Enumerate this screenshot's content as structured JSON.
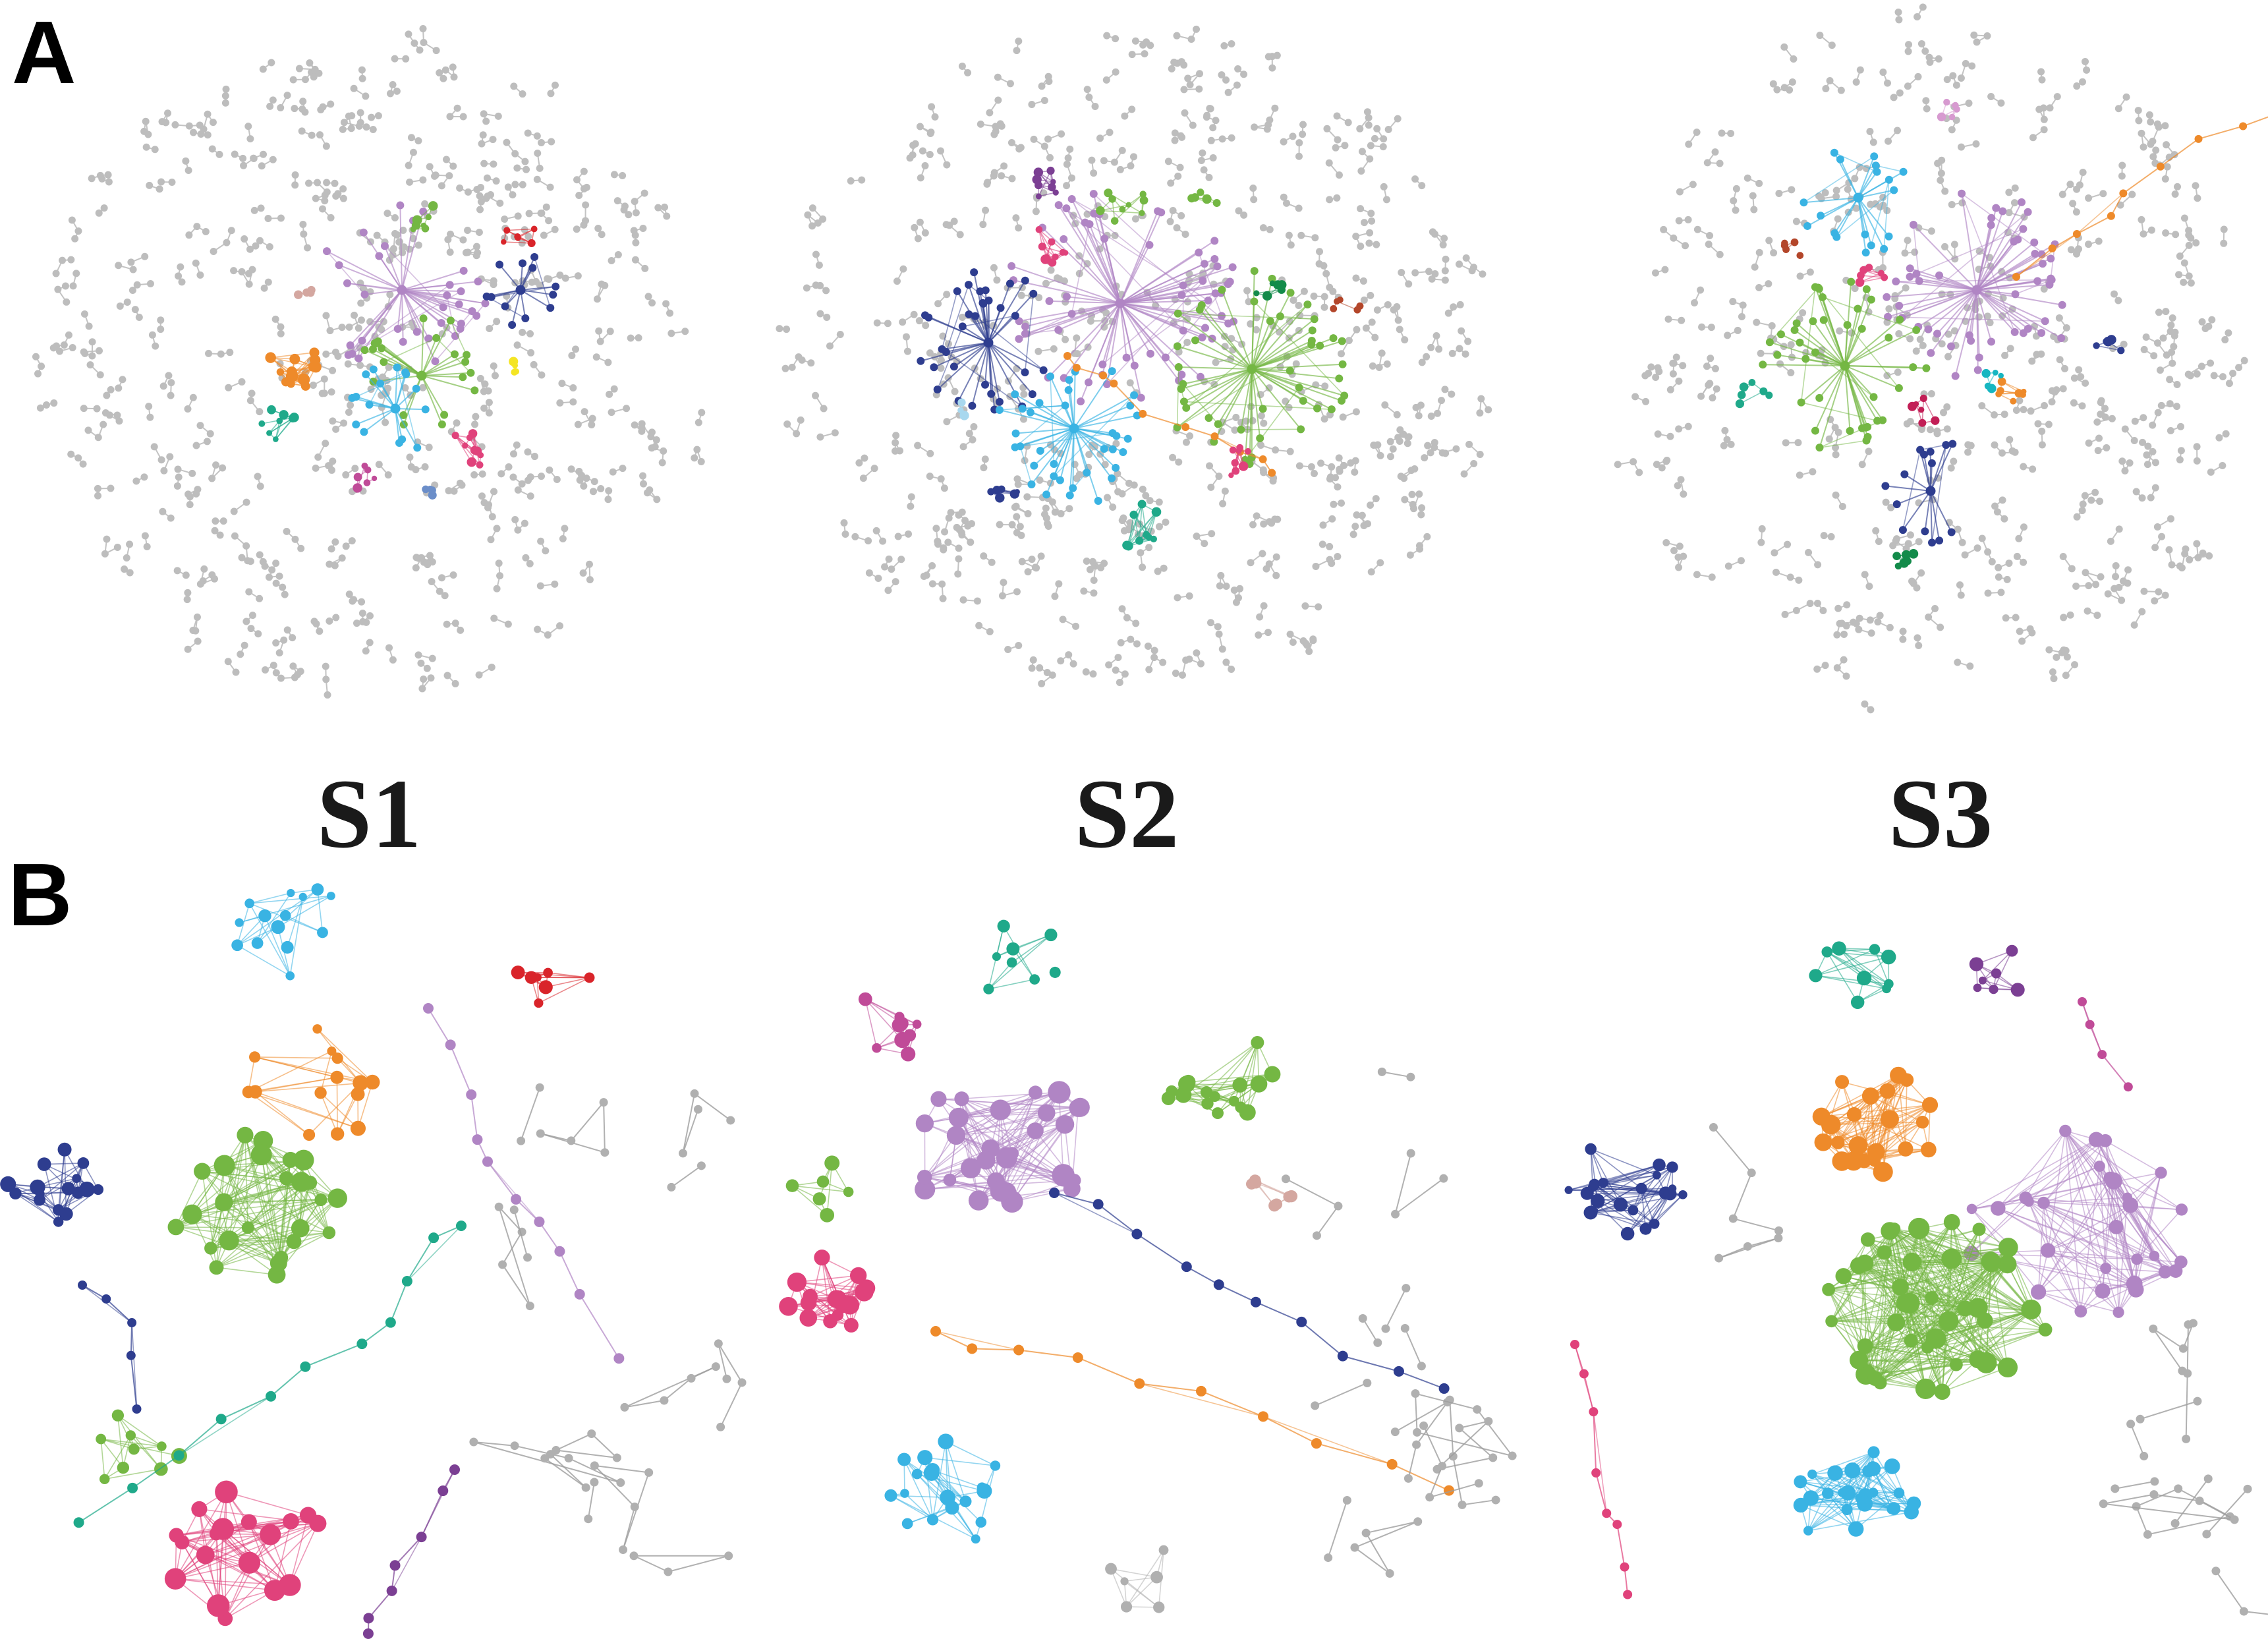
{
  "panels": {
    "a_label": "A",
    "b_label": "B"
  },
  "networks": [
    {
      "name": "S1"
    },
    {
      "name": "S2"
    },
    {
      "name": "S3"
    }
  ],
  "colors": {
    "background_nodes": "#bdbdbd",
    "purple": "#b085c4",
    "green": "#74b743",
    "orange": "#ee8a2a",
    "cyan": "#39b3e3",
    "navy": "#2e3d8f",
    "teal": "#1fa98a",
    "pink": "#e0427b",
    "red": "#d9242a",
    "yellow": "#f4e524",
    "darkpurple": "#7b3f93",
    "magenta": "#c04b98",
    "brown": "#b3462a",
    "rose": "#d4a7a0",
    "darkgreen": "#138b4a"
  }
}
